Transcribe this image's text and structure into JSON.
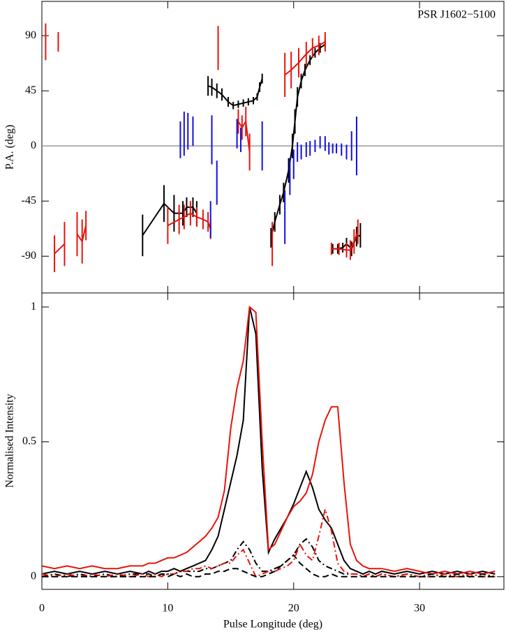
{
  "chart_data": [
    {
      "type": "errorbar",
      "title": "PSR J1602−5100",
      "ylabel": "P.A. (deg)",
      "xlim": [
        0,
        36.7
      ],
      "ylim": [
        -120,
        118
      ],
      "xticks": [
        0,
        10,
        20,
        30
      ],
      "yticks": [
        -90,
        -45,
        0,
        45,
        90
      ],
      "xtick_labels": false,
      "refline": 0,
      "refline_color": "#999999",
      "series": [
        {
          "color": "#000000",
          "connect": true,
          "x": [
            8.0,
            9.7,
            10.5,
            11.2,
            11.5,
            12.0,
            12.3,
            null,
            13.2,
            13.5,
            13.9,
            14.3,
            14.8,
            15.2,
            15.6,
            16.0,
            16.4,
            16.8,
            17.1,
            17.3,
            17.5,
            null,
            18.2,
            18.5,
            18.9,
            19.2,
            19.6,
            19.9,
            20.1,
            20.3,
            20.6,
            20.9,
            21.3,
            21.7,
            22.1,
            22.5,
            null,
            23.1,
            23.5,
            23.9,
            24.2,
            24.6,
            25.0,
            25.3
          ],
          "values": [
            -73,
            -47,
            -55,
            -55,
            -50,
            -50,
            -55,
            null,
            49,
            48,
            45,
            42,
            36,
            33,
            34,
            35,
            36,
            37,
            40,
            48,
            55,
            null,
            -75,
            -62,
            -48,
            -38,
            -20,
            0,
            20,
            40,
            53,
            62,
            70,
            76,
            80,
            83,
            null,
            -84,
            -84,
            -83,
            -80,
            -84,
            -74,
            -73
          ],
          "errors": [
            17,
            15,
            15,
            10,
            8,
            8,
            10,
            null,
            8,
            7,
            6,
            5,
            4,
            3,
            3,
            3,
            3,
            3,
            3,
            4,
            4,
            null,
            8,
            8,
            8,
            8,
            10,
            10,
            10,
            8,
            6,
            5,
            4,
            4,
            4,
            4,
            null,
            4,
            4,
            4,
            5,
            6,
            8,
            10
          ]
        },
        {
          "color": "#e8140c",
          "connect": true,
          "x": [
            0.3,
            null,
            1.3,
            null,
            1.0,
            1.8,
            null,
            2.8,
            3.2,
            3.5,
            null,
            10.0,
            10.9,
            11.3,
            11.8,
            12.3,
            12.8,
            13.2,
            13.4,
            null,
            14.0,
            null,
            15.6,
            15.9,
            16.2,
            16.5,
            null,
            18.3,
            null,
            19.3,
            19.8,
            20.4,
            21.0,
            21.5,
            22.0,
            22.5,
            null,
            23.0,
            23.6,
            24.2,
            24.5,
            24.8,
            25.1
          ],
          "values": [
            85,
            null,
            85,
            null,
            -88,
            -80,
            null,
            -72,
            -78,
            -65,
            null,
            -65,
            -60,
            -58,
            -55,
            -58,
            -60,
            -62,
            -68,
            null,
            80,
            null,
            20,
            15,
            20,
            -5,
            null,
            -80,
            null,
            58,
            62,
            68,
            75,
            80,
            82,
            85,
            null,
            -84,
            -84,
            -85,
            -85,
            -78,
            -70
          ],
          "errors": [
            15,
            null,
            8,
            null,
            15,
            18,
            null,
            18,
            18,
            12,
            null,
            15,
            12,
            10,
            10,
            8,
            8,
            8,
            8,
            null,
            18,
            null,
            10,
            10,
            12,
            15,
            null,
            18,
            null,
            18,
            15,
            12,
            10,
            8,
            8,
            8,
            null,
            5,
            5,
            6,
            8,
            10,
            10
          ]
        },
        {
          "color": "#1010e0",
          "connect": false,
          "x": [
            11.0,
            11.3,
            11.6,
            12.0,
            13.4,
            13.5,
            13.9,
            15.5,
            15.8,
            17.5,
            19.3,
            19.7,
            20.0,
            20.3,
            20.6,
            21.0,
            21.3,
            21.7,
            22.1,
            22.5,
            22.8,
            23.1,
            23.4,
            23.8,
            24.2,
            24.6,
            25.0
          ],
          "values": [
            5,
            10,
            12,
            12,
            -60,
            5,
            -30,
            10,
            5,
            0,
            -58,
            -25,
            -15,
            -5,
            -5,
            -3,
            -2,
            0,
            3,
            2,
            -2,
            -2,
            -2,
            -3,
            -5,
            0,
            0
          ],
          "errors": [
            15,
            18,
            15,
            12,
            15,
            20,
            18,
            12,
            10,
            20,
            22,
            15,
            12,
            8,
            6,
            6,
            6,
            5,
            5,
            6,
            5,
            4,
            4,
            5,
            6,
            12,
            24
          ]
        }
      ]
    },
    {
      "type": "line",
      "xlabel": "Pulse Longitude (deg)",
      "ylabel": "Normalised Intensity",
      "xlim": [
        0,
        36.7
      ],
      "ylim": [
        -0.047,
        1.052
      ],
      "xticks": [
        0,
        10,
        20,
        30
      ],
      "yticks": [
        0,
        0.5,
        1
      ],
      "xtick_labels": true,
      "x": [
        0,
        1,
        2,
        3,
        4,
        5,
        6,
        7,
        8,
        8.5,
        9,
        9.5,
        10,
        10.5,
        11,
        11.5,
        12,
        12.5,
        13,
        13.5,
        14,
        14.5,
        15,
        15.5,
        16,
        16.5,
        17,
        17.5,
        18,
        18.5,
        19,
        19.5,
        20,
        20.5,
        21,
        21.5,
        22,
        22.5,
        23,
        23.5,
        24,
        24.5,
        25,
        25.5,
        26,
        26.5,
        27,
        28,
        29,
        30,
        31,
        32,
        33,
        34,
        35,
        36
      ],
      "series": [
        {
          "color": "#000000",
          "dash": "solid",
          "values": [
            0.01,
            0.02,
            0.01,
            0.02,
            0.01,
            0.02,
            0.01,
            0.02,
            0.01,
            0.02,
            0.01,
            0.02,
            0.02,
            0.03,
            0.02,
            0.03,
            0.04,
            0.05,
            0.06,
            0.1,
            0.15,
            0.25,
            0.35,
            0.45,
            0.58,
            1.0,
            0.9,
            0.4,
            0.09,
            0.14,
            0.18,
            0.22,
            0.27,
            0.33,
            0.39,
            0.33,
            0.25,
            0.21,
            0.18,
            0.12,
            0.06,
            0.03,
            0.02,
            0.01,
            0.02,
            0.01,
            0.02,
            0.01,
            0.02,
            0.01,
            0.02,
            0.01,
            0.02,
            0.01,
            0.02,
            0.01
          ]
        },
        {
          "color": "#e8140c",
          "dash": "solid",
          "values": [
            0.04,
            0.03,
            0.04,
            0.03,
            0.04,
            0.03,
            0.03,
            0.04,
            0.04,
            0.05,
            0.05,
            0.06,
            0.07,
            0.07,
            0.08,
            0.09,
            0.11,
            0.13,
            0.15,
            0.18,
            0.22,
            0.32,
            0.55,
            0.7,
            0.8,
            1.0,
            0.98,
            0.5,
            0.1,
            0.12,
            0.17,
            0.22,
            0.26,
            0.28,
            0.31,
            0.38,
            0.5,
            0.58,
            0.63,
            0.63,
            0.35,
            0.12,
            0.06,
            0.04,
            0.03,
            0.03,
            0.03,
            0.02,
            0.03,
            0.02,
            0.01,
            0.02,
            0.01,
            0.02,
            0.01,
            0.02
          ]
        },
        {
          "color": "#000000",
          "dash": "dashdot",
          "values": [
            0,
            0.01,
            0,
            0.01,
            0,
            0.01,
            0,
            0.01,
            0.01,
            0.01,
            0,
            0.01,
            0.01,
            0.01,
            0.02,
            0.02,
            0.02,
            0.02,
            0.03,
            0.03,
            0.04,
            0.05,
            0.06,
            0.1,
            0.13,
            0.1,
            0.05,
            0.02,
            0.02,
            0.03,
            0.04,
            0.06,
            0.08,
            0.12,
            0.14,
            0.11,
            0.06,
            0.04,
            0.03,
            0.02,
            0.01,
            0.01,
            0.01,
            0,
            0.01,
            0,
            0.01,
            0,
            0.01,
            0,
            0.01,
            0,
            0.01,
            0,
            0.01,
            0
          ]
        },
        {
          "color": "#e8140c",
          "dash": "dashdot",
          "values": [
            0.01,
            0,
            0.01,
            0,
            0.01,
            0,
            0.01,
            0,
            0.01,
            0,
            0.01,
            0,
            0.01,
            0.01,
            0.02,
            0.02,
            0.03,
            0.03,
            0.04,
            0.03,
            0.04,
            0.05,
            0.05,
            0.08,
            0.1,
            0.05,
            0,
            0.01,
            0.02,
            0.02,
            0.03,
            0.04,
            0.06,
            0.12,
            0.08,
            0.06,
            0.15,
            0.25,
            0.17,
            0.05,
            0.02,
            0.01,
            0.01,
            0,
            0.01,
            0,
            0.01,
            0,
            0.01,
            0,
            0,
            0.01,
            0,
            0.01,
            0,
            0
          ]
        },
        {
          "color": "#000000",
          "dash": "dashed",
          "values": [
            0,
            0,
            0,
            0,
            0,
            0,
            0,
            0,
            0,
            0,
            0,
            0.01,
            0,
            0.01,
            0,
            0.01,
            0,
            0,
            0.01,
            0.01,
            0.02,
            0.02,
            0.03,
            0.03,
            0.02,
            0.01,
            0,
            0,
            0.01,
            0.02,
            0.04,
            0.06,
            0.08,
            0.05,
            0.03,
            0.01,
            0,
            0,
            0.01,
            0,
            0,
            0,
            0,
            0,
            0,
            0,
            0,
            0,
            0,
            0,
            0,
            0,
            0,
            0,
            0,
            0
          ]
        }
      ]
    }
  ]
}
